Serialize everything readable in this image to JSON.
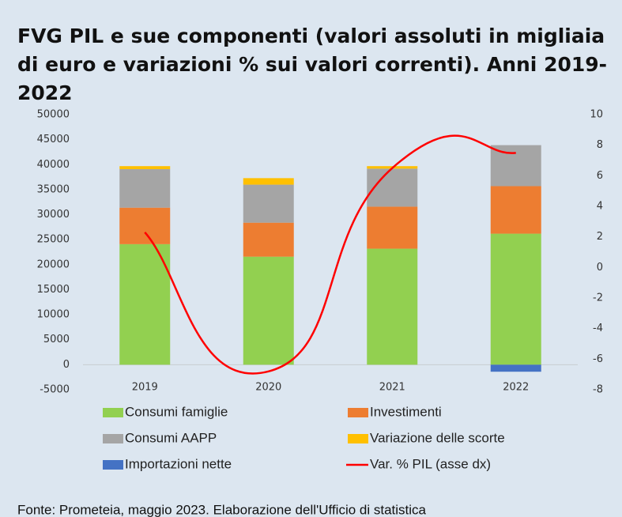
{
  "chart_data": {
    "type": "bar",
    "title": "FVG PIL e sue componenti (valori assoluti in migliaia di euro e variazioni % sui valori correnti). Anni 2019-2022",
    "source": "Fonte: Prometeia, maggio 2023. Elaborazione dell'Ufficio di statistica",
    "categories": [
      "2019",
      "2020",
      "2021",
      "2022"
    ],
    "stacked": true,
    "series": [
      {
        "name": "Consumi famiglie",
        "color": "#92d050",
        "values": [
          24100,
          21600,
          23200,
          26200
        ]
      },
      {
        "name": "Investimenti",
        "color": "#ed7d31",
        "values": [
          7300,
          6800,
          8400,
          9500
        ]
      },
      {
        "name": "Consumi AAPP",
        "color": "#a5a5a5",
        "values": [
          7700,
          7600,
          7600,
          8200
        ]
      },
      {
        "name": "Variazione delle scorte",
        "color": "#ffc000",
        "values": [
          600,
          1300,
          500,
          0
        ]
      },
      {
        "name": "Importazioni nette",
        "color": "#4472c4",
        "values": [
          0,
          0,
          0,
          -1400
        ]
      },
      {
        "name": "Var. % PIL (asse dx)",
        "color": "#ff0000",
        "type": "line",
        "axis": "y2",
        "smooth": true,
        "values": [
          2.3,
          -6.8,
          6.5,
          7.5
        ]
      }
    ],
    "ylim": [
      -5000,
      50000
    ],
    "yticks": [
      -5000,
      0,
      5000,
      10000,
      15000,
      20000,
      25000,
      30000,
      35000,
      40000,
      45000,
      50000
    ],
    "y2lim": [
      -8,
      10
    ],
    "y2ticks": [
      -8,
      -6,
      -4,
      -2,
      0,
      2,
      4,
      6,
      8,
      10
    ],
    "grid": false
  }
}
